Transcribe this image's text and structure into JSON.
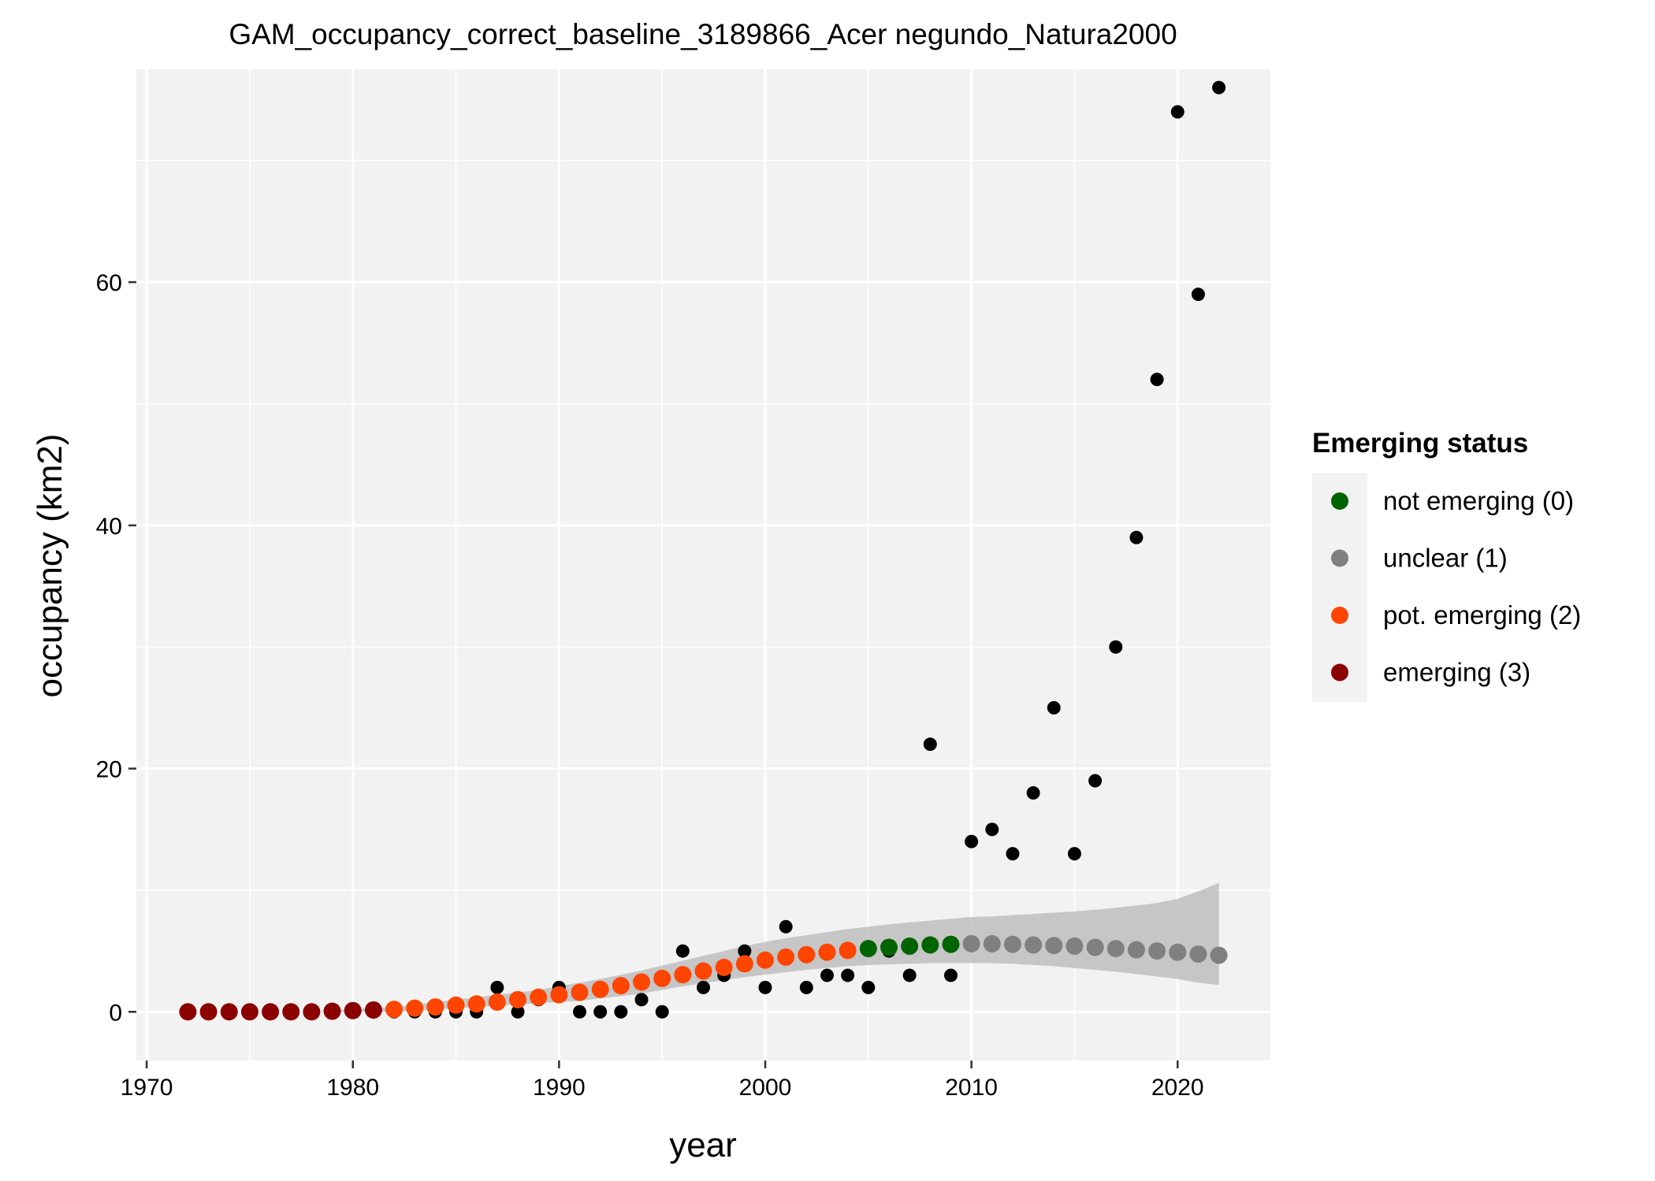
{
  "chart_data": {
    "type": "scatter",
    "title": "GAM_occupancy_correct_baseline_3189866_Acer negundo_Natura2000",
    "xlabel": "year",
    "ylabel": "occupancy (km2)",
    "xlim": [
      1969.5,
      2024.5
    ],
    "ylim": [
      -4,
      77.5
    ],
    "x_ticks": [
      1970,
      1980,
      1990,
      2000,
      2010,
      2020
    ],
    "y_ticks": [
      0,
      20,
      40,
      60
    ],
    "grid": true,
    "legend": {
      "title": "Emerging status",
      "placement": "right",
      "entries": [
        {
          "label": "not emerging (0)",
          "color": "#006400"
        },
        {
          "label": "unclear (1)",
          "color": "#808080"
        },
        {
          "label": "pot. emerging (2)",
          "color": "#FF4500"
        },
        {
          "label": "emerging (3)",
          "color": "#8B0000"
        }
      ]
    },
    "colors": {
      "panel_background": "#F2F2F2",
      "grid": "#FFFFFF",
      "observed_points": "#000000",
      "confidence_band": "#BEBEBE"
    },
    "observed": {
      "x": [
        1972,
        1973,
        1974,
        1975,
        1976,
        1977,
        1978,
        1979,
        1980,
        1981,
        1982,
        1983,
        1984,
        1985,
        1986,
        1987,
        1988,
        1989,
        1990,
        1991,
        1992,
        1993,
        1994,
        1995,
        1996,
        1997,
        1998,
        1999,
        2000,
        2001,
        2002,
        2003,
        2004,
        2005,
        2006,
        2007,
        2008,
        2009,
        2010,
        2011,
        2012,
        2013,
        2014,
        2015,
        2016,
        2017,
        2018,
        2019,
        2020,
        2021,
        2022
      ],
      "y": [
        0,
        0,
        0,
        0,
        0,
        0,
        0,
        0,
        0,
        0,
        0,
        0,
        0,
        0,
        0,
        2,
        0,
        1,
        2,
        0,
        0,
        0,
        1,
        0,
        5,
        2,
        3,
        5,
        2,
        7,
        2,
        3,
        3,
        2,
        5,
        3,
        22,
        3,
        14,
        15,
        13,
        18,
        25,
        13,
        19,
        30,
        39,
        52,
        74,
        59,
        76
      ]
    },
    "fitted": {
      "x": [
        1972,
        1973,
        1974,
        1975,
        1976,
        1977,
        1978,
        1979,
        1980,
        1981,
        1982,
        1983,
        1984,
        1985,
        1986,
        1987,
        1988,
        1989,
        1990,
        1991,
        1992,
        1993,
        1994,
        1995,
        1996,
        1997,
        1998,
        1999,
        2000,
        2001,
        2002,
        2003,
        2004,
        2005,
        2006,
        2007,
        2008,
        2009,
        2010,
        2011,
        2012,
        2013,
        2014,
        2015,
        2016,
        2017,
        2018,
        2019,
        2020,
        2021,
        2022
      ],
      "y": [
        0,
        0,
        0,
        0,
        0,
        0,
        0,
        0.05,
        0.1,
        0.15,
        0.2,
        0.3,
        0.4,
        0.55,
        0.65,
        0.8,
        1.0,
        1.2,
        1.4,
        1.6,
        1.85,
        2.15,
        2.45,
        2.75,
        3.05,
        3.35,
        3.65,
        3.95,
        4.25,
        4.5,
        4.7,
        4.9,
        5.05,
        5.2,
        5.3,
        5.4,
        5.5,
        5.55,
        5.6,
        5.6,
        5.55,
        5.5,
        5.45,
        5.4,
        5.3,
        5.2,
        5.1,
        5.0,
        4.9,
        4.75,
        4.65
      ],
      "lower": [
        0,
        0,
        0,
        0,
        0,
        0,
        0,
        0,
        0,
        0,
        0,
        0.1,
        0.2,
        0.3,
        0.4,
        0.5,
        0.6,
        0.7,
        0.8,
        0.9,
        1.1,
        1.3,
        1.5,
        1.8,
        2.1,
        2.35,
        2.6,
        2.85,
        3.05,
        3.25,
        3.45,
        3.6,
        3.75,
        3.85,
        3.9,
        3.95,
        4.0,
        4.0,
        4.0,
        4.0,
        3.95,
        3.85,
        3.75,
        3.6,
        3.45,
        3.3,
        3.1,
        2.9,
        2.7,
        2.4,
        2.2
      ],
      "upper": [
        0,
        0,
        0,
        0,
        0,
        0,
        0,
        0.1,
        0.2,
        0.3,
        0.4,
        0.6,
        0.8,
        1.0,
        1.2,
        1.4,
        1.6,
        1.8,
        2.1,
        2.4,
        2.7,
        3.05,
        3.4,
        3.8,
        4.2,
        4.6,
        5.0,
        5.4,
        5.75,
        6.05,
        6.3,
        6.55,
        6.8,
        7.0,
        7.2,
        7.35,
        7.5,
        7.65,
        7.8,
        7.85,
        7.95,
        8.05,
        8.15,
        8.25,
        8.4,
        8.55,
        8.75,
        8.95,
        9.3,
        9.9,
        10.6
      ],
      "status": [
        3,
        3,
        3,
        3,
        3,
        3,
        3,
        3,
        3,
        3,
        2,
        2,
        2,
        2,
        2,
        2,
        2,
        2,
        2,
        2,
        2,
        2,
        2,
        2,
        2,
        2,
        2,
        2,
        2,
        2,
        2,
        2,
        2,
        0,
        0,
        0,
        0,
        0,
        1,
        1,
        1,
        1,
        1,
        1,
        1,
        1,
        1,
        1,
        1,
        1,
        1
      ]
    }
  }
}
